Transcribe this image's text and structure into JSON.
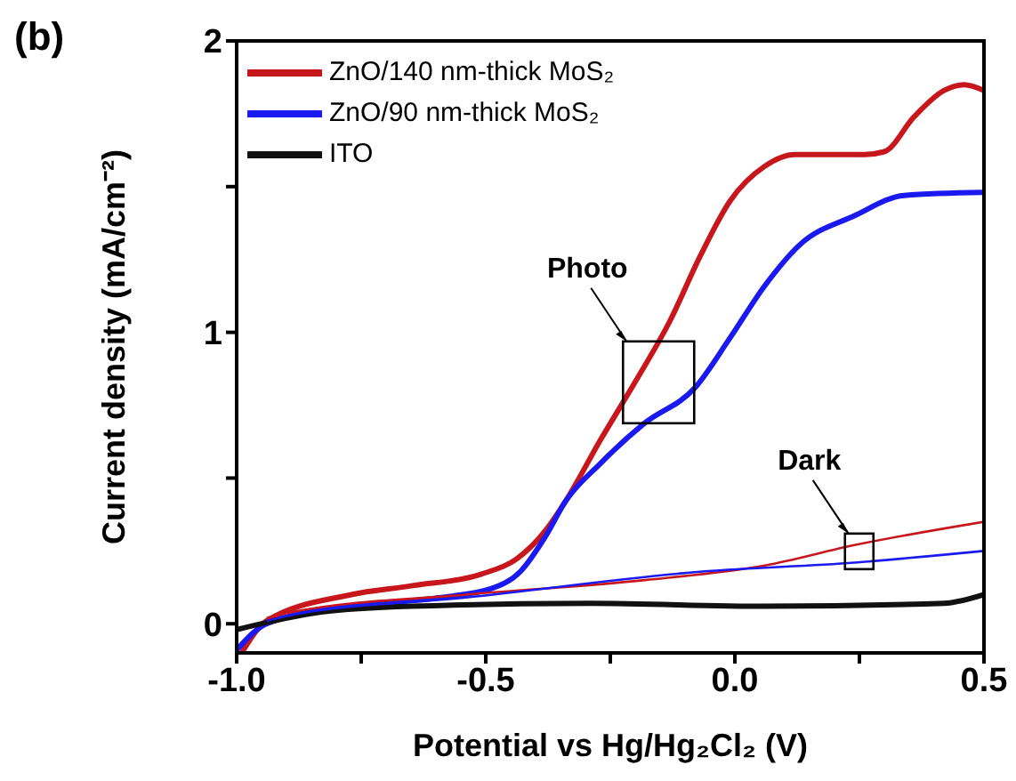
{
  "chart_data": {
    "type": "line",
    "title": "(b)",
    "xlabel": "Potential vs Hg/Hg₂Cl₂ (V)",
    "ylabel": "Current density (mA/cm⁻²)",
    "xlim": [
      -1.0,
      0.5
    ],
    "xticks": [
      {
        "value": -1,
        "label": "-1.0"
      },
      {
        "value": -0.75,
        "label": null
      },
      {
        "value": -0.5,
        "label": "-0.5"
      },
      {
        "value": -0.25,
        "label": null
      },
      {
        "value": 0,
        "label": "0.0"
      },
      {
        "value": 0.25,
        "label": null
      },
      {
        "value": 0.5,
        "label": "0.5"
      }
    ],
    "ylim": [
      -0.1,
      2
    ],
    "yticks": [
      0,
      {
        "value": 0.5,
        "label": null
      },
      1,
      {
        "value": 1.5,
        "label": null
      },
      2
    ],
    "legend": "top left",
    "grid": false,
    "marker": "none",
    "line_style": "solid",
    "annotations": [
      "Photo",
      "Dark"
    ],
    "series": [
      {
        "name": "ZnO/140 nm-thick MoS₂",
        "color": "#c8161d",
        "x": [
          -0.99,
          -0.94,
          -0.77,
          -0.65,
          -0.51,
          -0.44,
          -0.38,
          -0.34,
          -0.27,
          -0.2,
          -0.13,
          -0.07,
          -0.01,
          0.06,
          0.12,
          0.18,
          0.26,
          0.3,
          0.36,
          0.42,
          0.46,
          0.5
        ],
        "values": [
          -0.1,
          0.01,
          0.1,
          0.13,
          0.17,
          0.22,
          0.32,
          0.42,
          0.63,
          0.83,
          1.04,
          1.26,
          1.45,
          1.57,
          1.61,
          1.61,
          1.61,
          1.62,
          1.74,
          1.83,
          1.85,
          1.83
        ]
      },
      {
        "name": "ZnO/90 nm-thick MoS₂",
        "color": "#1a1af0",
        "x": [
          -1.0,
          -0.94,
          -0.77,
          -0.59,
          -0.49,
          -0.43,
          -0.38,
          -0.34,
          -0.27,
          -0.18,
          -0.08,
          -0.01,
          0.06,
          0.13,
          0.24,
          0.34,
          0.5
        ],
        "values": [
          -0.09,
          0.0,
          0.06,
          0.09,
          0.12,
          0.18,
          0.3,
          0.42,
          0.55,
          0.69,
          0.81,
          0.98,
          1.16,
          1.3,
          1.4,
          1.47,
          1.48
        ]
      },
      {
        "name": "ITO",
        "color": "#111111",
        "x": [
          -1.0,
          -0.83,
          -0.65,
          -0.29,
          0.06,
          0.42,
          0.5
        ],
        "values": [
          -0.02,
          0.04,
          0.06,
          0.07,
          0.06,
          0.07,
          0.1
        ]
      },
      {
        "color": "#c8161d",
        "x": [
          -0.94,
          -0.89,
          -0.54,
          -0.18,
          0.06,
          0.24,
          0.5
        ],
        "values": [
          0.02,
          0.04,
          0.1,
          0.15,
          0.2,
          0.27,
          0.35
        ]
      },
      {
        "color": "#1a1af0",
        "x": [
          -0.94,
          -0.89,
          -0.54,
          -0.06,
          0.24,
          0.5
        ],
        "values": [
          0.01,
          0.03,
          0.09,
          0.18,
          0.21,
          0.25
        ]
      }
    ]
  }
}
